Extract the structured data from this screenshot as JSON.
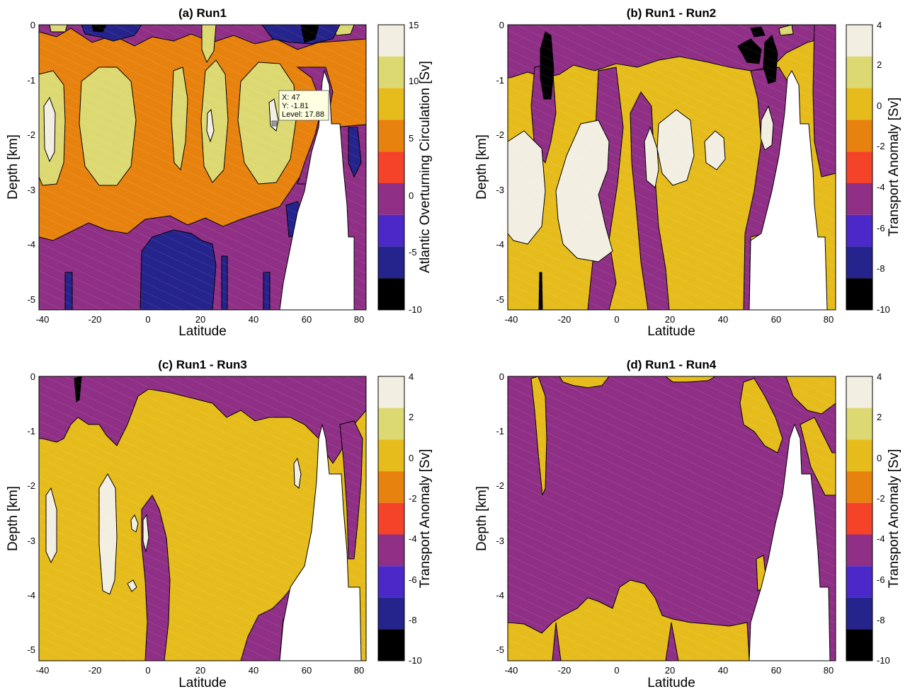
{
  "figure": {
    "panels": [
      {
        "title": "(a) Run1",
        "xlabel": "Latitude",
        "ylabel": "Depth [km]",
        "colorbar_label": "Atlantic Overturning Circulation [Sv]",
        "colorbar_ticks": [
          "15",
          "10",
          "5",
          "0",
          "-5",
          "-10"
        ]
      },
      {
        "title": "(b) Run1 - Run2",
        "xlabel": "Latitude",
        "ylabel": "Depth [km]",
        "colorbar_label": "Transport Anomaly [Sv]",
        "colorbar_ticks": [
          "4",
          "2",
          "0",
          "-2",
          "-4",
          "-6",
          "-8",
          "-10"
        ]
      },
      {
        "title": "(c) Run1 - Run3",
        "xlabel": "Latitude",
        "ylabel": "Depth [km]",
        "colorbar_label": "Transport Anomaly [Sv]",
        "colorbar_ticks": [
          "4",
          "2",
          "0",
          "-2",
          "-4",
          "-6",
          "-8",
          "-10"
        ]
      },
      {
        "title": "(d) Run1 - Run4",
        "xlabel": "Latitude",
        "ylabel": "Depth [km]",
        "colorbar_label": "Transport Anomaly [Sv]",
        "colorbar_ticks": [
          "4",
          "2",
          "0",
          "-2",
          "-4",
          "-6",
          "-8",
          "-10"
        ]
      }
    ],
    "x_ticks": [
      "-40",
      "-20",
      "0",
      "20",
      "40",
      "60",
      "80"
    ],
    "y_ticks": [
      "0",
      "-1",
      "-2",
      "-3",
      "-4",
      "-5"
    ],
    "datatip": {
      "x_text": "X: 47",
      "y_text": "Y: -1.81",
      "level_text": "Level: 17.88"
    }
  },
  "chart_data": [
    {
      "type": "heatmap",
      "title": "(a) Run1",
      "xlabel": "Latitude",
      "ylabel": "Depth [km]",
      "xlim": [
        -42,
        82
      ],
      "ylim": [
        -5.2,
        0
      ],
      "colorbar": {
        "label": "Atlantic Overturning Circulation [Sv]",
        "range": [
          -10,
          15
        ],
        "levels": [
          -10,
          -7.5,
          -5,
          -2.5,
          0,
          2.5,
          5,
          7.5,
          10,
          12.5,
          15
        ]
      },
      "datatip": {
        "x": 47,
        "y": -1.81,
        "level": 17.88
      },
      "features": [
        {
          "level": "10 to 15",
          "lat_center": -37,
          "depth_center": -1.9
        },
        {
          "level": "10 to 15",
          "lat_center": -15,
          "depth_center": -1.9
        },
        {
          "level": "10 to 15",
          "lat_center": 12,
          "depth_center": -1.9
        },
        {
          "level": "10 to 15",
          "lat_center": 25,
          "depth_center": -2.0
        },
        {
          "level": "10 to 15",
          "lat_center": 43,
          "depth_center": -1.9
        },
        {
          "level": "-5 to -10",
          "lat_center": 10,
          "depth_center": -4.5
        }
      ]
    },
    {
      "type": "heatmap",
      "title": "(b) Run1 - Run2",
      "xlabel": "Latitude",
      "ylabel": "Depth [km]",
      "xlim": [
        -42,
        82
      ],
      "ylim": [
        -5.2,
        0
      ],
      "colorbar": {
        "label": "Transport Anomaly [Sv]",
        "range": [
          -10,
          4
        ],
        "levels": [
          -10,
          -9,
          -8,
          -7,
          -6,
          -5,
          -4,
          -3,
          -2,
          -1,
          0,
          1,
          2,
          3,
          4
        ]
      }
    },
    {
      "type": "heatmap",
      "title": "(c) Run1 - Run3",
      "xlabel": "Latitude",
      "ylabel": "Depth [km]",
      "xlim": [
        -42,
        82
      ],
      "ylim": [
        -5.2,
        0
      ],
      "colorbar": {
        "label": "Transport Anomaly [Sv]",
        "range": [
          -10,
          4
        ],
        "levels": [
          -10,
          -9,
          -8,
          -7,
          -6,
          -5,
          -4,
          -3,
          -2,
          -1,
          0,
          1,
          2,
          3,
          4
        ]
      }
    },
    {
      "type": "heatmap",
      "title": "(d) Run1 - Run4",
      "xlabel": "Latitude",
      "ylabel": "Depth [km]",
      "xlim": [
        -42,
        82
      ],
      "ylim": [
        -5.2,
        0
      ],
      "colorbar": {
        "label": "Transport Anomaly [Sv]",
        "range": [
          -10,
          4
        ],
        "levels": [
          -10,
          -9,
          -8,
          -7,
          -6,
          -5,
          -4,
          -3,
          -2,
          -1,
          0,
          1,
          2,
          3,
          4
        ]
      }
    }
  ],
  "colors": {
    "black": "#000000",
    "navy": "#25238c",
    "blue": "#4a29c8",
    "purple": "#8f2f86",
    "red": "#f5432a",
    "orange": "#e8820e",
    "gold": "#e6bc1c",
    "yellow": "#ddd972",
    "cream": "#f2efe2",
    "land": "#ffffff"
  }
}
